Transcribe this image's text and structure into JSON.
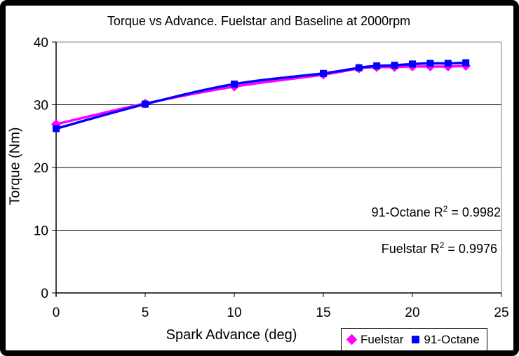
{
  "colors": {
    "fuelstar": "#FF00FF",
    "octane91": "#0000FF",
    "grid": "#000000",
    "plot_border": "#808080",
    "axis": "#000000"
  },
  "chart_data": {
    "type": "scatter",
    "title": "Torque vs Advance. Fuelstar and Baseline at 2000rpm",
    "xlabel": "Spark Advance (deg)",
    "ylabel": "Torque (Nm)",
    "xlim": [
      0,
      25
    ],
    "ylim": [
      0,
      40
    ],
    "x_ticks": [
      0,
      5,
      10,
      15,
      20,
      25
    ],
    "y_ticks": [
      0,
      10,
      20,
      30,
      40
    ],
    "grid": "horizontal",
    "legend_position": "bottom-right",
    "x": [
      0,
      5,
      10,
      15,
      17,
      18,
      19,
      20,
      21,
      22,
      23
    ],
    "series": [
      {
        "name": "Fuelstar",
        "color": "#FF00FF",
        "marker": "diamond",
        "values": [
          26.9,
          30.2,
          32.9,
          34.8,
          35.8,
          36.0,
          36.0,
          36.1,
          36.1,
          36.1,
          36.2
        ],
        "trendline": "smooth",
        "r_squared": 0.9976
      },
      {
        "name": "91-Octane",
        "color": "#0000FF",
        "marker": "square",
        "values": [
          26.2,
          30.1,
          33.3,
          35.0,
          35.9,
          36.2,
          36.3,
          36.5,
          36.6,
          36.6,
          36.7
        ],
        "trendline": "smooth",
        "r_squared": 0.9982
      }
    ],
    "annotations": [
      {
        "prefix": "91-Octane R",
        "sup": "2",
        "suffix": " = 0.9982"
      },
      {
        "prefix": "Fuelstar R",
        "sup": "2",
        "suffix": " = 0.9976"
      }
    ]
  }
}
